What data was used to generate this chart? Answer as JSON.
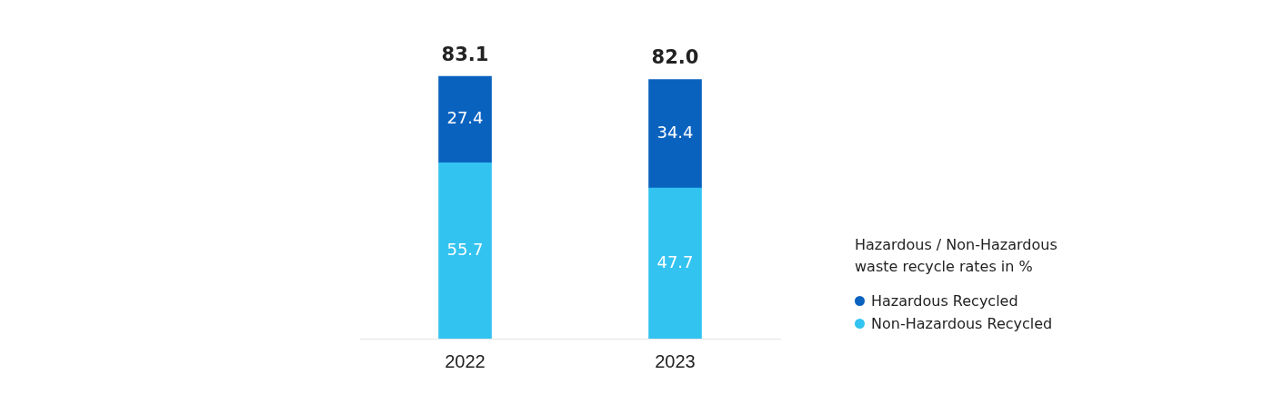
{
  "chart_data": {
    "type": "bar",
    "stacked": true,
    "categories": [
      "2022",
      "2023"
    ],
    "series": [
      {
        "name": "Non-Hazardous Recycled",
        "color": "#33c3f0",
        "values": [
          55.7,
          47.7
        ]
      },
      {
        "name": "Hazardous Recycled",
        "color": "#0a62bf",
        "values": [
          27.4,
          34.4
        ]
      }
    ],
    "data_labels": true,
    "totals": [
      "83.1",
      "82.0"
    ],
    "legend": "right",
    "legend_title": "Hazardous / Non-Hazardous\nwaste recycle rates in %",
    "grid": false
  }
}
